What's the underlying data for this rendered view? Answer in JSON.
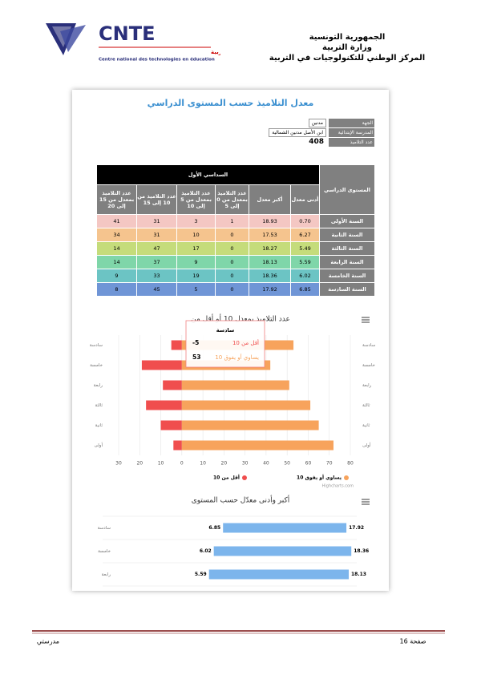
{
  "header": {
    "lines": [
      "الجمهورية التونسية",
      "وزارة التربية",
      "المركز الوطني للتكنولوجيات في التربية"
    ],
    "logo": {
      "acronym": "CNTE",
      "arabic": "المركز الوطني للتكنولوجيات في التربية",
      "french": "Centre national des technologies en éducation"
    }
  },
  "panel": {
    "title": "معدل التلاميذ حسب المستوى الدراسي",
    "filters": [
      {
        "label": "الجهة",
        "value": "مدنين"
      },
      {
        "label": "المدرسة الإبتدائية",
        "value": "ابن الأصل مدنين الشمالية"
      },
      {
        "label": "عدد التلاميذ",
        "value": "408"
      }
    ]
  },
  "table": {
    "level_header": "المستوى الدراسي",
    "semester": "السداسي الأول",
    "columns": [
      "أدنى معدل",
      "أكبر معدل",
      "عدد التلاميذ بمعدل من 0 إلى 5",
      "عدد التلاميذ بمعدل من 5 إلى 10",
      "عدد التلاميذ من 10 إلى 15",
      "عدد التلاميذ بمعدل من 15 إلى 20"
    ],
    "rows": [
      [
        "السنة الأولى",
        "0.70",
        "18.93",
        "1",
        "3",
        "31",
        "41"
      ],
      [
        "السنة الثانية",
        "6.27",
        "17.53",
        "0",
        "10",
        "31",
        "34"
      ],
      [
        "السنة الثالثة",
        "5.49",
        "18.27",
        "0",
        "17",
        "47",
        "14"
      ],
      [
        "السنة الرابعة",
        "5.59",
        "18.13",
        "0",
        "9",
        "37",
        "14"
      ],
      [
        "السنة الخامسة",
        "6.02",
        "18.36",
        "0",
        "19",
        "33",
        "9"
      ],
      [
        "السنة السادسة",
        "6.85",
        "17.92",
        "0",
        "5",
        "45",
        "8"
      ]
    ]
  },
  "charts": [
    {
      "type": "diverging-bar",
      "title": "عدد التلاميذ بمعدل 10 أو أقل من",
      "categories": [
        "سادسة",
        "خامسة",
        "رابعة",
        "ثالثة",
        "ثانية",
        "أولى"
      ],
      "series": [
        {
          "name": "أقل من 10",
          "color": "#f04e4e",
          "values": [
            -5,
            -19,
            -9,
            -17,
            -10,
            -4
          ]
        },
        {
          "name": "يساوي أو يفوق 10",
          "color": "#f7a35c",
          "values": [
            53,
            42,
            51,
            61,
            65,
            72
          ]
        }
      ],
      "xlim": [
        -30,
        80
      ],
      "xticks": [
        {
          "value": -30,
          "label": "30"
        },
        {
          "value": -20,
          "label": "20"
        },
        {
          "value": -10,
          "label": "10"
        },
        0,
        10,
        20,
        30,
        40,
        50,
        60,
        70,
        80
      ],
      "grid": true,
      "credit": "Highcharts.com"
    },
    {
      "type": "range-bar",
      "title": "أكبر وأدنى معدّل حسب المستوى",
      "categories": [
        "سادسة",
        "خامسة",
        "رابعة"
      ],
      "low": [
        6.85,
        6.02,
        5.59
      ],
      "high": [
        17.92,
        18.36,
        18.13
      ],
      "color": "#7cb5ec",
      "xlim": [
        0,
        20
      ]
    }
  ],
  "footer": {
    "site": "مدرستي",
    "page": "صفحة 16"
  }
}
